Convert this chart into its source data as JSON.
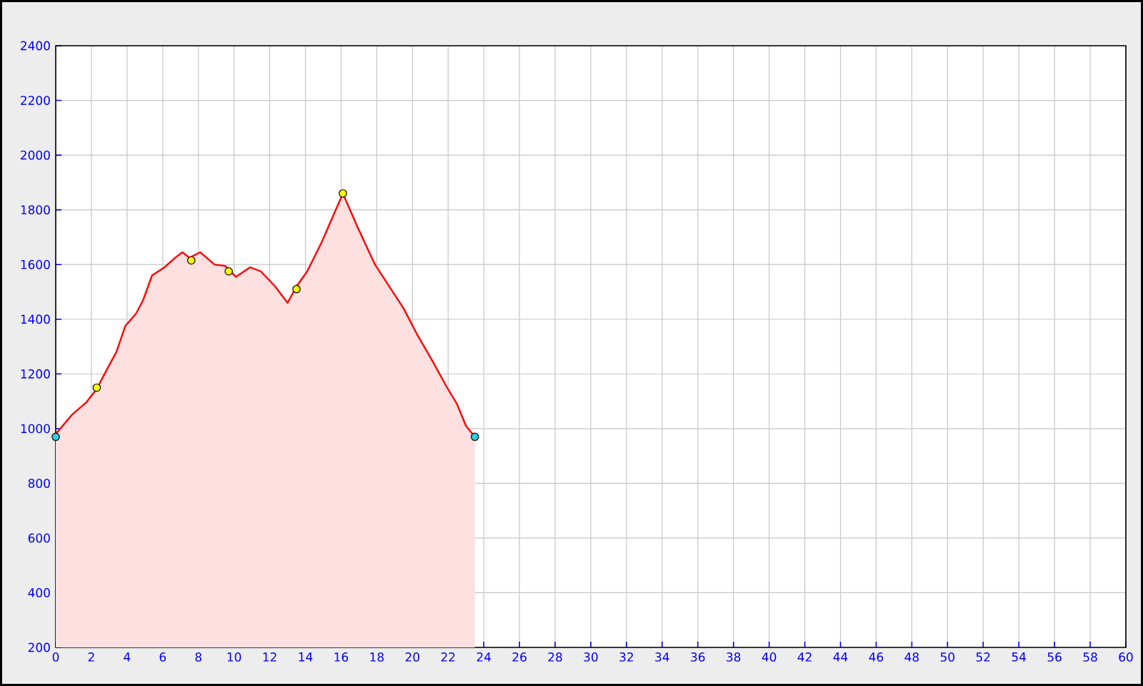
{
  "chart_data": {
    "type": "area",
    "xlim": [
      0,
      60
    ],
    "ylim": [
      200,
      2400
    ],
    "xticks": [
      0,
      2,
      4,
      6,
      8,
      10,
      12,
      14,
      16,
      18,
      20,
      22,
      24,
      26,
      28,
      30,
      32,
      34,
      36,
      38,
      40,
      42,
      44,
      46,
      48,
      50,
      52,
      54,
      56,
      58,
      60
    ],
    "yticks": [
      200,
      400,
      600,
      800,
      1000,
      1200,
      1400,
      1600,
      1800,
      2000,
      2200,
      2400
    ],
    "grid": true,
    "series": [
      {
        "color": "#ff0000",
        "marker": "none",
        "x": [
          0,
          0.9,
          1.7,
          2.3,
          2.9,
          3.4,
          3.9,
          4.5,
          4.9,
          5.4,
          6.1,
          6.7,
          7.1,
          7.5,
          8.1,
          8.9,
          9.5,
          10.1,
          10.9,
          11.5,
          12.3,
          13.0,
          13.5,
          14.1,
          14.9,
          16.1,
          16.9,
          17.9,
          18.7,
          19.5,
          20.3,
          21.1,
          21.9,
          22.5,
          23.0,
          23.5
        ],
        "values": [
          980,
          1050,
          1095,
          1145,
          1220,
          1280,
          1375,
          1420,
          1470,
          1560,
          1590,
          1625,
          1645,
          1625,
          1645,
          1600,
          1595,
          1555,
          1590,
          1575,
          1520,
          1460,
          1520,
          1575,
          1680,
          1860,
          1740,
          1600,
          1520,
          1440,
          1340,
          1250,
          1155,
          1090,
          1010,
          970
        ]
      },
      {
        "type": "scatter",
        "marker": "circle",
        "x": [
          0,
          2.3,
          7.6,
          9.7,
          13.5,
          16.1,
          23.5
        ],
        "values": [
          970,
          1150,
          1615,
          1575,
          1510,
          1860,
          970
        ],
        "colors": [
          "#33ccdd",
          "#ffff00",
          "#ffff00",
          "#ffff00",
          "#ffff00",
          "#ffff00",
          "#33ccdd"
        ]
      }
    ]
  }
}
